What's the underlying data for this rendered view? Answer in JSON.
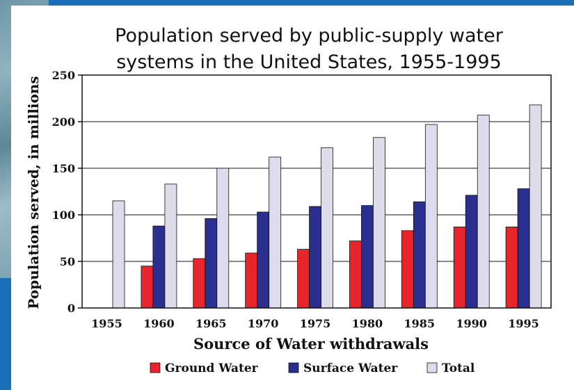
{
  "chart_data": {
    "type": "bar",
    "title_line1": "Population served by public-supply water",
    "title_line2": "systems in the United States, 1955-1995",
    "xlabel": "Source of Water withdrawals",
    "ylabel": "Population served, in millions",
    "categories": [
      "1955",
      "1960",
      "1965",
      "1970",
      "1975",
      "1980",
      "1985",
      "1990",
      "1995"
    ],
    "ylim": [
      0,
      250
    ],
    "yticks": [
      "0",
      "50",
      "100",
      "150",
      "200",
      "250"
    ],
    "grid": true,
    "legend_position": "bottom",
    "series": [
      {
        "name": "Ground Water",
        "color": "#e8242c",
        "values": [
          null,
          45,
          53,
          59,
          63,
          72,
          83,
          87,
          87
        ]
      },
      {
        "name": "Surface Water",
        "color": "#2b2f8f",
        "values": [
          null,
          88,
          96,
          103,
          109,
          110,
          114,
          121,
          128
        ]
      },
      {
        "name": "Total",
        "color": "#dcdcec",
        "values": [
          115,
          133,
          150,
          162,
          172,
          183,
          197,
          207,
          218
        ]
      }
    ]
  }
}
